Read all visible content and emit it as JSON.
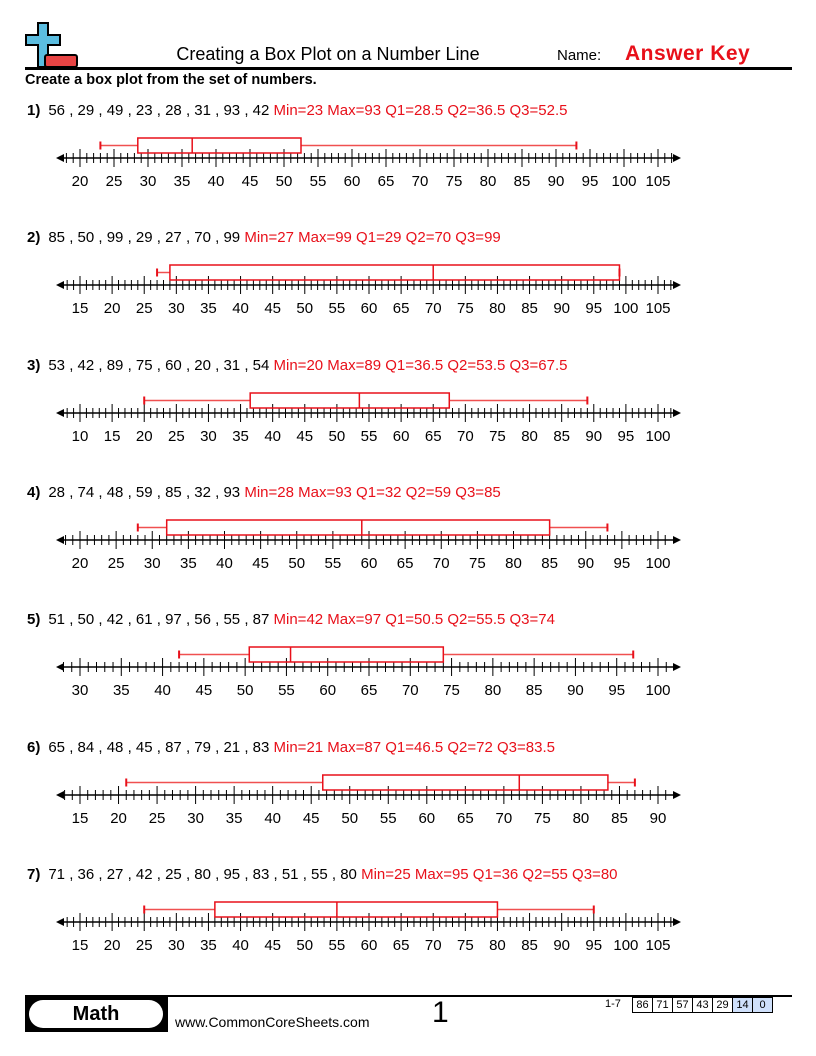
{
  "header": {
    "title": "Creating a Box Plot on a Number Line",
    "name_label": "Name:",
    "answer_key": "Answer Key",
    "instructions": "Create a box plot from the set of numbers."
  },
  "colors": {
    "answer": "#e8101a",
    "logo_blue": "#5bbde0",
    "logo_red": "#e84444",
    "score_highlight": "#cfe0fb"
  },
  "problems": [
    {
      "label": "1)",
      "numbers": "56 , 29 , 49 , 23 , 28 , 31 , 93 , 42",
      "answer": "Min=23 Max=93 Q1=28.5 Q2=36.5 Q3=52.5",
      "axis_min": 20,
      "axis_max": 105,
      "min": 23,
      "max": 93,
      "q1": 28.5,
      "q2": 36.5,
      "q3": 52.5
    },
    {
      "label": "2)",
      "numbers": "85 , 50 , 99 , 29 , 27 , 70 , 99",
      "answer": "Min=27 Max=99 Q1=29 Q2=70 Q3=99",
      "axis_min": 15,
      "axis_max": 105,
      "min": 27,
      "max": 99,
      "q1": 29,
      "q2": 70,
      "q3": 99
    },
    {
      "label": "3)",
      "numbers": "53 , 42 , 89 , 75 , 60 , 20 , 31 , 54",
      "answer": "Min=20 Max=89 Q1=36.5 Q2=53.5 Q3=67.5",
      "axis_min": 10,
      "axis_max": 100,
      "min": 20,
      "max": 89,
      "q1": 36.5,
      "q2": 53.5,
      "q3": 67.5
    },
    {
      "label": "4)",
      "numbers": "28 , 74 , 48 , 59 , 85 , 32 , 93",
      "answer": "Min=28 Max=93 Q1=32 Q2=59 Q3=85",
      "axis_min": 20,
      "axis_max": 100,
      "min": 28,
      "max": 93,
      "q1": 32,
      "q2": 59,
      "q3": 85
    },
    {
      "label": "5)",
      "numbers": "51 , 50 , 42 , 61 , 97 , 56 , 55 , 87",
      "answer": "Min=42 Max=97 Q1=50.5 Q2=55.5 Q3=74",
      "axis_min": 30,
      "axis_max": 100,
      "min": 42,
      "max": 97,
      "q1": 50.5,
      "q2": 55.5,
      "q3": 74
    },
    {
      "label": "6)",
      "numbers": "65 , 84 , 48 , 45 , 87 , 79 , 21 , 83",
      "answer": "Min=21 Max=87 Q1=46.5 Q2=72 Q3=83.5",
      "axis_min": 15,
      "axis_max": 90,
      "min": 21,
      "max": 87,
      "q1": 46.5,
      "q2": 72,
      "q3": 83.5
    },
    {
      "label": "7)",
      "numbers": "71 , 36 , 27 , 42 , 25 , 80 , 95 , 83 , 51 , 55 , 80",
      "answer": "Min=25 Max=95 Q1=36 Q2=55 Q3=80",
      "axis_min": 15,
      "axis_max": 105,
      "min": 25,
      "max": 95,
      "q1": 36,
      "q2": 55,
      "q3": 80
    }
  ],
  "footer": {
    "subject": "Math",
    "website": "www.CommonCoreSheets.com",
    "page": "1",
    "range": "1-7",
    "scores": [
      "86",
      "71",
      "57",
      "43",
      "29",
      "14",
      "0"
    ]
  }
}
